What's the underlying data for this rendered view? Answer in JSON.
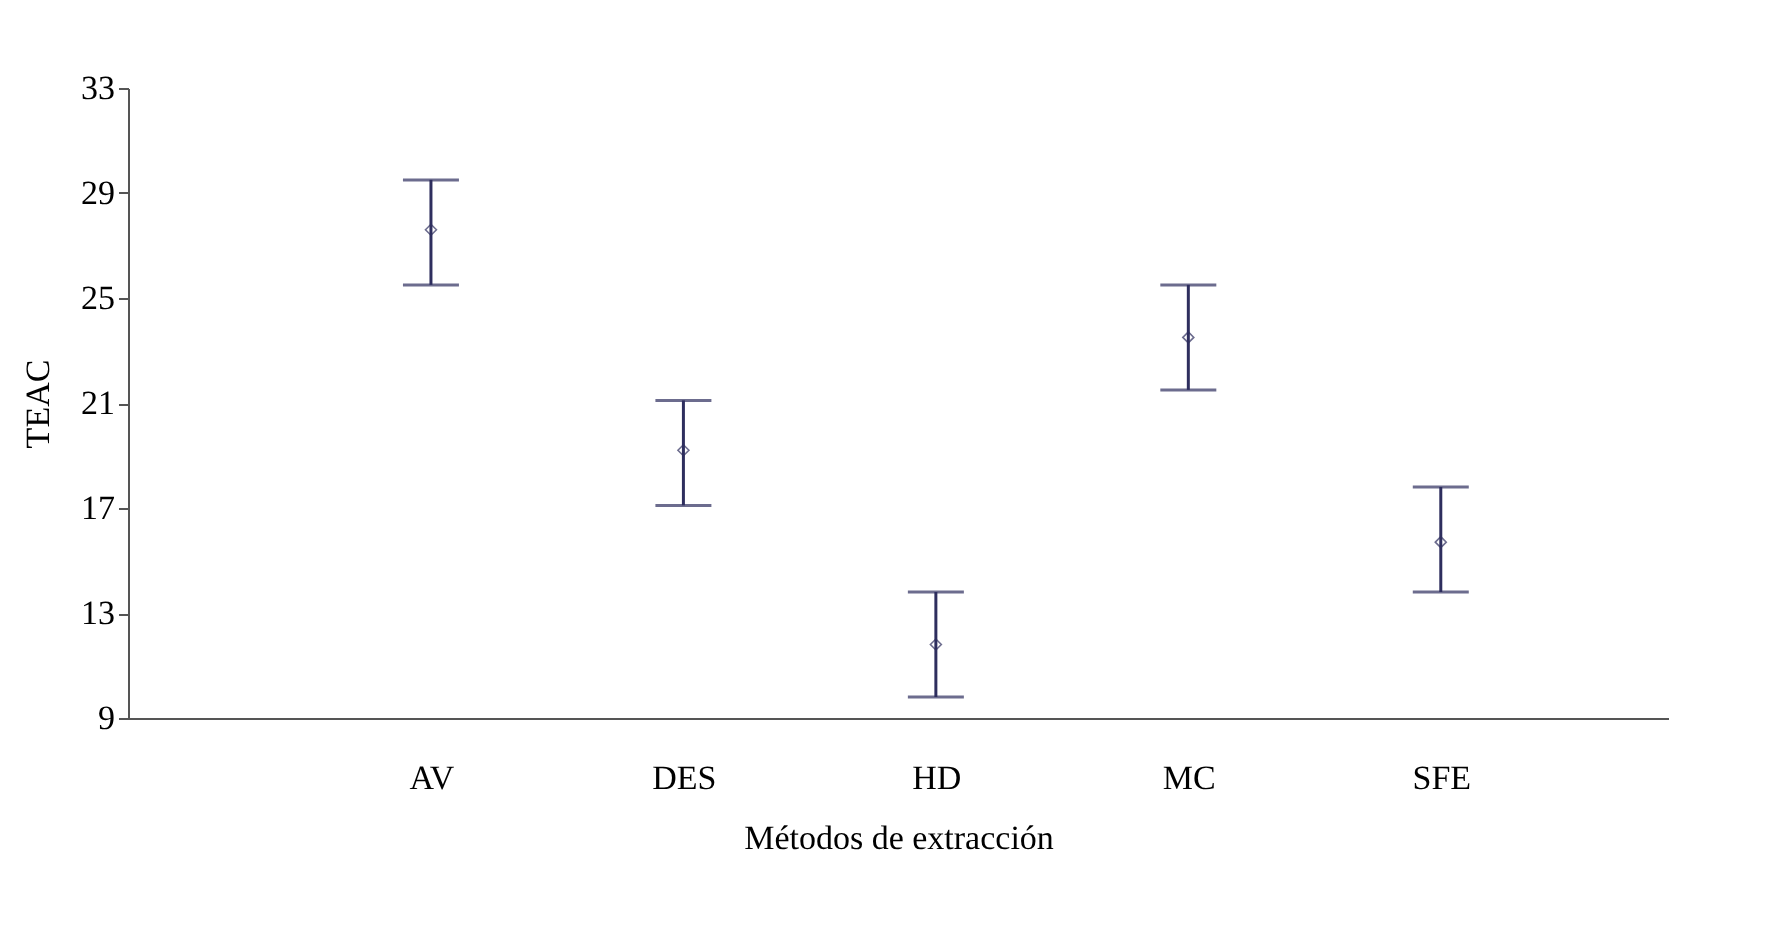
{
  "chart_data": {
    "type": "scatter",
    "xlabel": "Métodos de extracción",
    "ylabel": "TEAC",
    "categories": [
      "AV",
      "DES",
      "HD",
      "MC",
      "SFE"
    ],
    "series": [
      {
        "color": "#2e2e5e",
        "values": [
          27.6,
          19.2,
          11.8,
          23.5,
          15.7
        ],
        "errors": [
          [
            25.5,
            29.5
          ],
          [
            17.1,
            21.1
          ],
          [
            9.8,
            13.8
          ],
          [
            21.5,
            25.5
          ],
          [
            13.8,
            17.8
          ]
        ]
      }
    ],
    "marker": "diamond",
    "ylim": [
      9,
      33
    ],
    "yticks": [
      9,
      13,
      17,
      21,
      25,
      29,
      33
    ],
    "grid": false
  }
}
